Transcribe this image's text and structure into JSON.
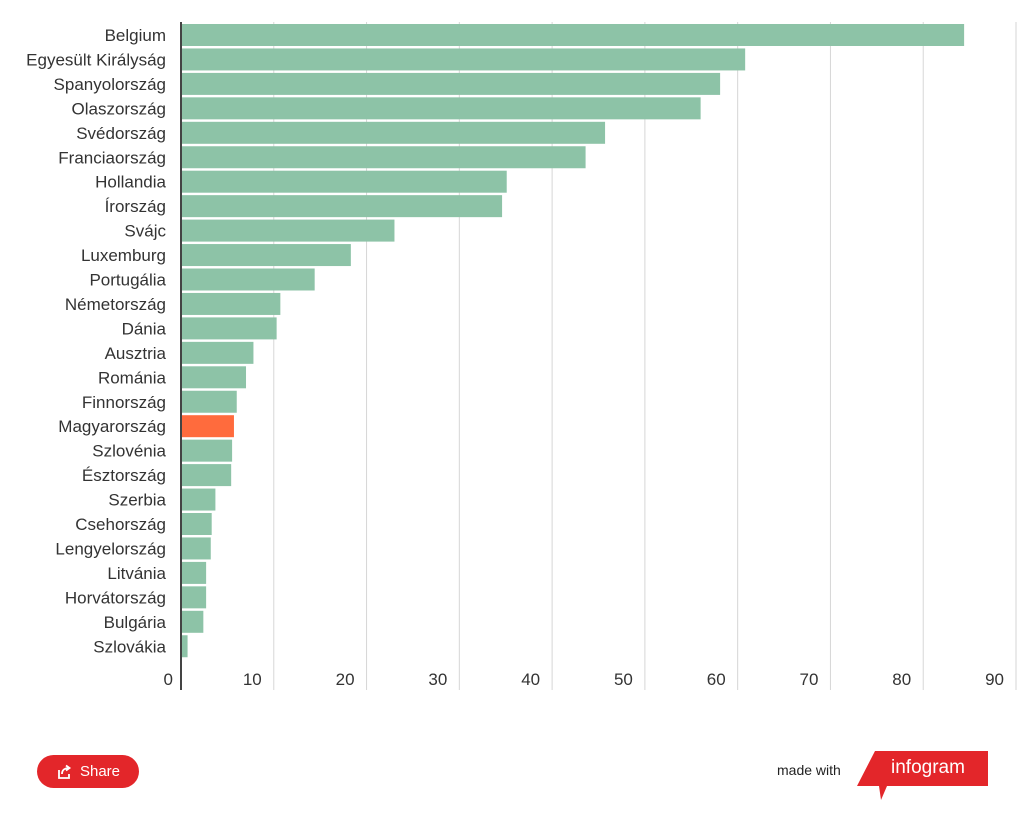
{
  "chart_data": {
    "type": "bar",
    "orientation": "horizontal",
    "title": "",
    "xlabel": "",
    "ylabel": "",
    "xlim": [
      0,
      90
    ],
    "grid": true,
    "highlight_category": "Magyarország",
    "colors": {
      "default": "#8dc3a7",
      "highlight": "#ff6b3d"
    },
    "categories": [
      "Belgium",
      "Egyesült Királyság",
      "Spanyolország",
      "Olaszország",
      "Svédország",
      "Franciaország",
      "Hollandia",
      "Írország",
      "Svájc",
      "Luxemburg",
      "Portugália",
      "Németország",
      "Dánia",
      "Ausztria",
      "Románia",
      "Finnország",
      "Magyarország",
      "Szlovénia",
      "Észtország",
      "Szerbia",
      "Csehország",
      "Lengyelország",
      "Litvánia",
      "Horvátország",
      "Bulgária",
      "Szlovákia"
    ],
    "values": [
      84.3,
      60.7,
      58.0,
      55.9,
      45.6,
      43.5,
      35.0,
      34.5,
      22.9,
      18.2,
      14.3,
      10.6,
      10.2,
      7.7,
      6.9,
      5.9,
      5.6,
      5.4,
      5.3,
      3.6,
      3.2,
      3.1,
      2.6,
      2.6,
      2.3,
      0.6
    ],
    "ticks": [
      "0",
      "10",
      "20",
      "30",
      "40",
      "50",
      "60",
      "70",
      "80",
      "90"
    ]
  },
  "footer": {
    "share_label": "Share",
    "share_icon": "share-icon",
    "made_with": "made with",
    "brand": "infogram",
    "brand_color": "#e3262a"
  }
}
